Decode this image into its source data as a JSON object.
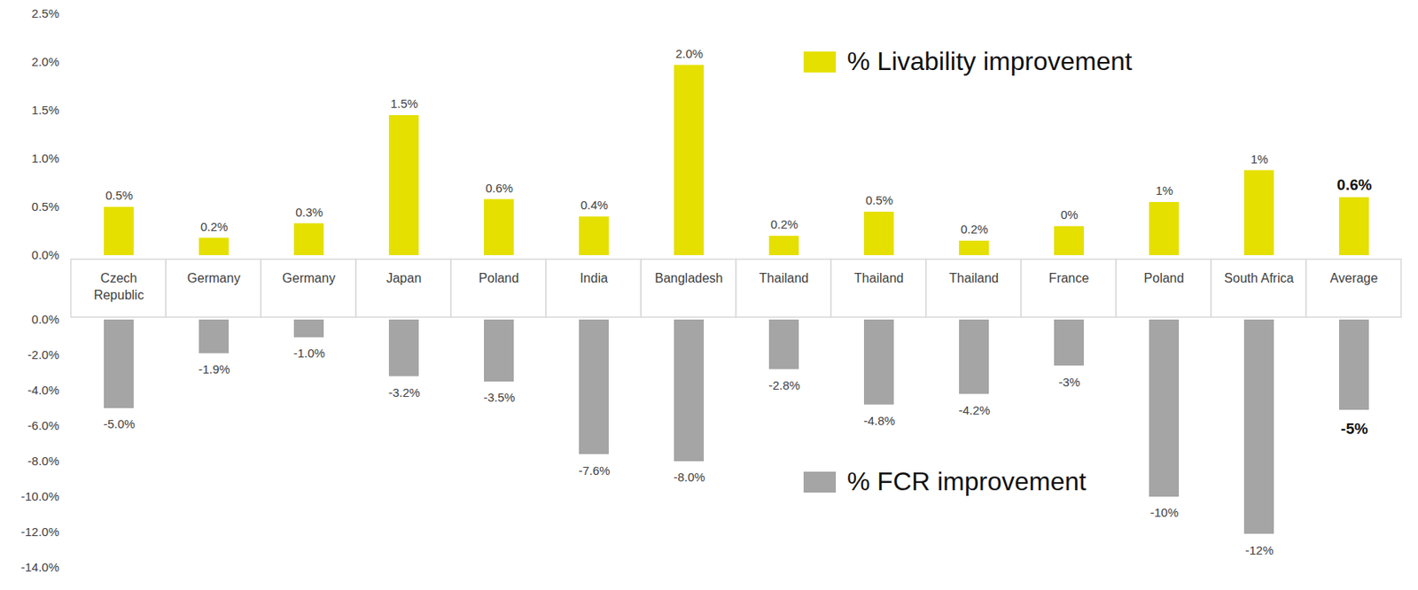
{
  "chart_data": [
    {
      "type": "bar",
      "categories": [
        "Czech Republic",
        "Germany",
        "Germany",
        "Japan",
        "Poland",
        "India",
        "Bangladesh",
        "Thailand",
        "Thailand",
        "Thailand",
        "France",
        "Poland",
        "South Africa",
        "Average"
      ],
      "series": [
        {
          "name": "% Livability improvement",
          "color": "#e5e000",
          "values": [
            0.5,
            0.18,
            0.33,
            1.45,
            0.58,
            0.4,
            1.97,
            0.2,
            0.45,
            0.15,
            0.3,
            0.55,
            0.88,
            0.6
          ],
          "value_labels": [
            "0.5%",
            "0.2%",
            "0.3%",
            "1.5%",
            "0.6%",
            "0.4%",
            "2.0%",
            "0.2%",
            "0.5%",
            "0.2%",
            "0%",
            "1%",
            "1%",
            "0.6%"
          ]
        }
      ],
      "ylim": [
        0,
        2.5
      ],
      "yticks": [
        {
          "value": 0,
          "label": "0.0%"
        },
        {
          "value": 0.5,
          "label": "0.5%"
        },
        {
          "value": 1,
          "label": "1.0%"
        },
        {
          "value": 1.5,
          "label": "1.5%"
        },
        {
          "value": 2,
          "label": "2.0%"
        },
        {
          "value": 2.5,
          "label": "2.5%"
        }
      ],
      "data_labels": true,
      "grid": false
    },
    {
      "type": "bar",
      "categories": [
        "Czech Republic",
        "Germany",
        "Germany",
        "Japan",
        "Poland",
        "India",
        "Bangladesh",
        "Thailand",
        "Thailand",
        "Thailand",
        "France",
        "Poland",
        "South Africa",
        "Average"
      ],
      "series": [
        {
          "name": "% FCR improvement",
          "color": "#a5a5a5",
          "values": [
            -5.0,
            -1.9,
            -1.0,
            -3.2,
            -3.5,
            -7.6,
            -8.0,
            -2.8,
            -4.8,
            -4.2,
            -2.6,
            -10,
            -12.1,
            -5.1
          ],
          "value_labels": [
            "-5.0%",
            "-1.9%",
            "-1.0%",
            "-3.2%",
            "-3.5%",
            "-7.6%",
            "-8.0%",
            "-2.8%",
            "-4.8%",
            "-4.2%",
            "-3%",
            "-10%",
            "-12%",
            "-5%"
          ]
        }
      ],
      "ylim": [
        -14,
        0
      ],
      "yticks": [
        {
          "value": -14,
          "label": "-14.0%"
        },
        {
          "value": -12,
          "label": "-12.0%"
        },
        {
          "value": -10,
          "label": "-10.0%"
        },
        {
          "value": -8,
          "label": "-8.0%"
        },
        {
          "value": -6,
          "label": "-6.0%"
        },
        {
          "value": -4,
          "label": "-4.0%"
        },
        {
          "value": -2,
          "label": "-2.0%"
        },
        {
          "value": 0,
          "label": "0.0%"
        }
      ],
      "data_labels": true,
      "grid": false
    }
  ]
}
